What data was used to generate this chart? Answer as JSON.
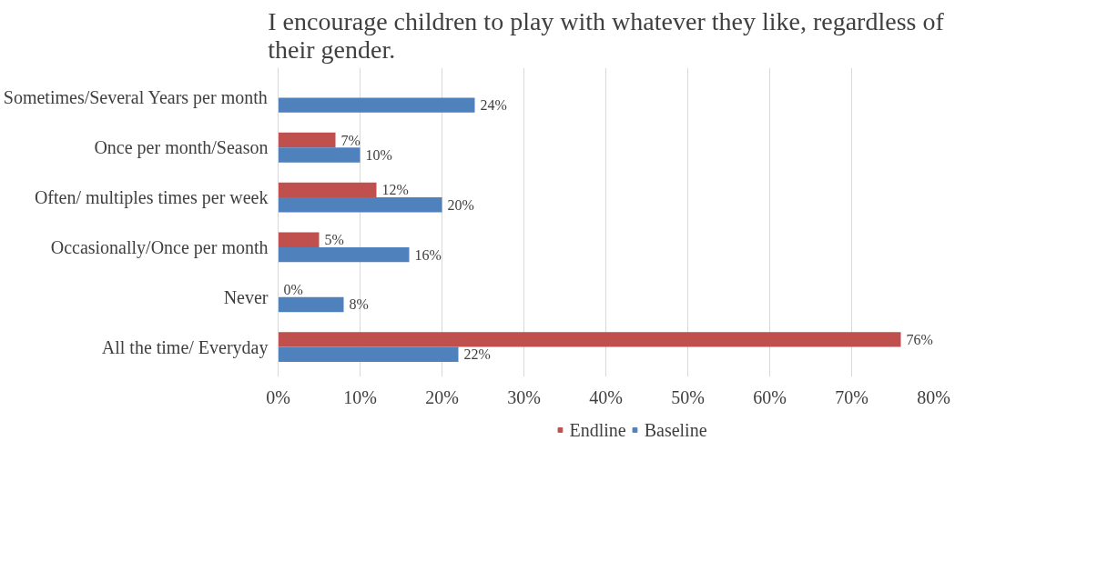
{
  "chart_data": {
    "type": "bar",
    "orientation": "horizontal",
    "title": "I encourage children to play with whatever they like, regardless of\ntheir gender.",
    "categories": [
      "Sometimes/Several Years per month",
      "Once per month/Season",
      "Often/ multiples times per week",
      "Occasionally/Once per month",
      "Never",
      "All the time/ Everyday"
    ],
    "series": [
      {
        "name": "Endline",
        "color": "#c0504d",
        "values": [
          null,
          7,
          12,
          5,
          0,
          76
        ],
        "value_labels": [
          null,
          "7%",
          "12%",
          "5%",
          "0%",
          "76%"
        ]
      },
      {
        "name": "Baseline",
        "color": "#4f81bd",
        "values": [
          24,
          10,
          20,
          16,
          8,
          22
        ],
        "value_labels": [
          "24%",
          "10%",
          "20%",
          "16%",
          "8%",
          "22%"
        ]
      }
    ],
    "xlim": [
      0,
      80
    ],
    "xticks": [
      {
        "value": 0,
        "label": "0%"
      },
      {
        "value": 10,
        "label": "10%"
      },
      {
        "value": 20,
        "label": "20%"
      },
      {
        "value": 30,
        "label": "30%"
      },
      {
        "value": 40,
        "label": "40%"
      },
      {
        "value": 50,
        "label": "50%"
      },
      {
        "value": 60,
        "label": "60%"
      },
      {
        "value": 70,
        "label": "70%"
      },
      {
        "value": 80,
        "label": "80%"
      }
    ],
    "grid": "x",
    "legend": "bottom"
  }
}
